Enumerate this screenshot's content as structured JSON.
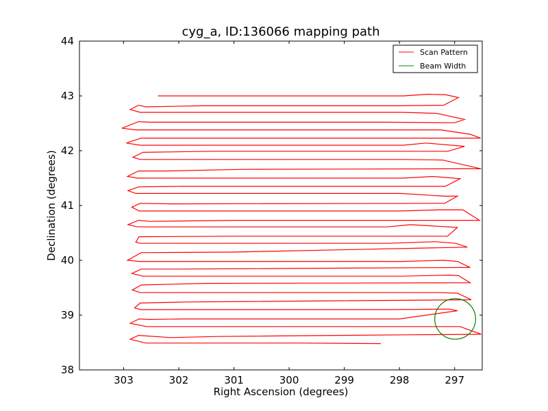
{
  "chart_data": {
    "type": "line",
    "title": "cyg_a, ID:136066 mapping path",
    "xlabel": "Right Ascension (degrees)",
    "ylabel": "Declination (degrees)",
    "xlim": [
      303.8,
      296.5
    ],
    "ylim": [
      38,
      44
    ],
    "x_reversed": true,
    "xticks": [
      303,
      302,
      301,
      300,
      299,
      298,
      297
    ],
    "yticks": [
      38,
      39,
      40,
      41,
      42,
      43,
      44
    ],
    "grid": false,
    "legend": {
      "position": "top-right",
      "entries": [
        {
          "label": "Scan Pattern",
          "color": "#ff0000"
        },
        {
          "label": "Beam Width",
          "color": "#008000"
        }
      ]
    },
    "series": [
      {
        "name": "Scan Pattern",
        "color": "#ff0000",
        "points": [
          [
            302.38,
            43.0
          ],
          [
            297.93,
            43.0
          ],
          [
            297.48,
            43.03
          ],
          [
            297.16,
            43.02
          ],
          [
            296.93,
            42.97
          ],
          [
            297.2,
            42.83
          ],
          [
            298.02,
            42.82
          ],
          [
            301.58,
            42.82
          ],
          [
            302.6,
            42.8
          ],
          [
            302.73,
            42.83
          ],
          [
            302.88,
            42.75
          ],
          [
            302.7,
            42.7
          ],
          [
            297.93,
            42.7
          ],
          [
            297.32,
            42.68
          ],
          [
            296.82,
            42.57
          ],
          [
            297.0,
            42.51
          ],
          [
            298.25,
            42.52
          ],
          [
            302.52,
            42.52
          ],
          [
            302.73,
            42.53
          ],
          [
            303.03,
            42.41
          ],
          [
            302.78,
            42.38
          ],
          [
            297.97,
            42.38
          ],
          [
            297.25,
            42.38
          ],
          [
            296.72,
            42.3
          ],
          [
            296.53,
            42.23
          ],
          [
            302.15,
            42.23
          ],
          [
            302.68,
            42.23
          ],
          [
            302.95,
            42.14
          ],
          [
            302.7,
            42.1
          ],
          [
            297.93,
            42.1
          ],
          [
            297.52,
            42.14
          ],
          [
            296.82,
            42.08
          ],
          [
            297.12,
            41.99
          ],
          [
            301.37,
            41.99
          ],
          [
            302.65,
            41.97
          ],
          [
            302.83,
            41.88
          ],
          [
            302.7,
            41.84
          ],
          [
            297.93,
            41.84
          ],
          [
            297.22,
            41.83
          ],
          [
            296.52,
            41.67
          ],
          [
            296.97,
            41.67
          ],
          [
            300.82,
            41.66
          ],
          [
            302.2,
            41.63
          ],
          [
            302.73,
            41.63
          ],
          [
            302.93,
            41.53
          ],
          [
            302.75,
            41.5
          ],
          [
            297.93,
            41.5
          ],
          [
            297.4,
            41.53
          ],
          [
            296.9,
            41.49
          ],
          [
            297.17,
            41.35
          ],
          [
            301.92,
            41.35
          ],
          [
            302.73,
            41.34
          ],
          [
            302.92,
            41.27
          ],
          [
            302.78,
            41.22
          ],
          [
            297.98,
            41.22
          ],
          [
            297.17,
            41.17
          ],
          [
            296.95,
            41.17
          ],
          [
            297.18,
            41.04
          ],
          [
            302.13,
            41.03
          ],
          [
            302.7,
            41.04
          ],
          [
            302.85,
            40.97
          ],
          [
            302.72,
            40.9
          ],
          [
            298.0,
            40.9
          ],
          [
            297.3,
            40.92
          ],
          [
            296.85,
            40.92
          ],
          [
            296.55,
            40.73
          ],
          [
            300.95,
            40.73
          ],
          [
            302.52,
            40.71
          ],
          [
            302.73,
            40.73
          ],
          [
            302.92,
            40.65
          ],
          [
            302.75,
            40.61
          ],
          [
            298.22,
            40.61
          ],
          [
            297.8,
            40.65
          ],
          [
            296.95,
            40.6
          ],
          [
            297.13,
            40.44
          ],
          [
            300.98,
            40.44
          ],
          [
            302.72,
            40.43
          ],
          [
            302.78,
            40.33
          ],
          [
            302.7,
            40.31
          ],
          [
            298.2,
            40.31
          ],
          [
            297.35,
            40.34
          ],
          [
            296.98,
            40.31
          ],
          [
            296.77,
            40.24
          ],
          [
            301.03,
            40.15
          ],
          [
            302.68,
            40.14
          ],
          [
            302.93,
            40.0
          ],
          [
            302.72,
            39.98
          ],
          [
            297.93,
            39.98
          ],
          [
            297.2,
            40.0
          ],
          [
            296.95,
            39.98
          ],
          [
            296.72,
            39.87
          ],
          [
            302.05,
            39.84
          ],
          [
            302.68,
            39.84
          ],
          [
            302.85,
            39.76
          ],
          [
            302.65,
            39.71
          ],
          [
            297.96,
            39.71
          ],
          [
            297.1,
            39.73
          ],
          [
            296.93,
            39.72
          ],
          [
            296.72,
            39.59
          ],
          [
            301.48,
            39.58
          ],
          [
            302.68,
            39.55
          ],
          [
            302.84,
            39.46
          ],
          [
            302.7,
            39.41
          ],
          [
            297.93,
            39.41
          ],
          [
            297.25,
            39.41
          ],
          [
            296.95,
            39.4
          ],
          [
            296.7,
            39.28
          ],
          [
            301.82,
            39.24
          ],
          [
            302.7,
            39.22
          ],
          [
            302.8,
            39.13
          ],
          [
            302.68,
            39.1
          ],
          [
            298.2,
            39.1
          ],
          [
            297.1,
            39.11
          ],
          [
            296.95,
            39.08
          ],
          [
            298.0,
            38.93
          ],
          [
            301.9,
            38.93
          ],
          [
            302.52,
            38.92
          ],
          [
            302.72,
            38.93
          ],
          [
            302.88,
            38.85
          ],
          [
            302.58,
            38.79
          ],
          [
            297.92,
            38.79
          ],
          [
            297.45,
            38.79
          ],
          [
            296.9,
            38.79
          ],
          [
            296.52,
            38.65
          ],
          [
            297.92,
            38.64
          ],
          [
            301.28,
            38.61
          ],
          [
            302.15,
            38.59
          ],
          [
            302.73,
            38.63
          ],
          [
            302.88,
            38.56
          ],
          [
            302.6,
            38.49
          ],
          [
            301.0,
            38.49
          ],
          [
            299.8,
            38.49
          ],
          [
            298.34,
            38.48
          ]
        ]
      },
      {
        "name": "Beam Width",
        "color": "#008000",
        "shape": "circle",
        "center": [
          296.99,
          38.93
        ],
        "radius_deg": 0.37
      }
    ]
  }
}
